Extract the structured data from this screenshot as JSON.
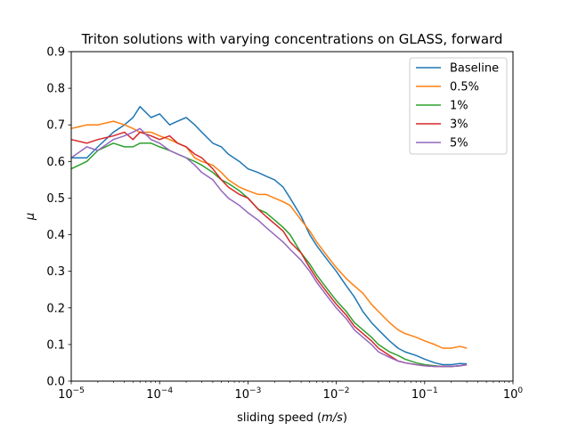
{
  "chart_data": {
    "type": "line",
    "title": "Triton solutions with varying concentrations on GLASS, forward",
    "xlabel_prefix": "sliding speed (",
    "xlabel_unit": "m/s",
    "xlabel_suffix": ")",
    "ylabel": "μ",
    "xscale": "log",
    "xlim": [
      1e-05,
      1
    ],
    "ylim": [
      0,
      0.9
    ],
    "x_ticks": [
      {
        "value": 1e-05,
        "base": "10",
        "exp": "−5"
      },
      {
        "value": 0.0001,
        "base": "10",
        "exp": "−4"
      },
      {
        "value": 0.001,
        "base": "10",
        "exp": "−3"
      },
      {
        "value": 0.01,
        "base": "10",
        "exp": "−2"
      },
      {
        "value": 0.1,
        "base": "10",
        "exp": "−1"
      },
      {
        "value": 1,
        "base": "10",
        "exp": "0"
      }
    ],
    "y_ticks": [
      "0.0",
      "0.1",
      "0.2",
      "0.3",
      "0.4",
      "0.5",
      "0.6",
      "0.7",
      "0.8",
      "0.9"
    ],
    "grid": false,
    "legend_position": "top-right",
    "series": [
      {
        "name": "Baseline",
        "color": "#1f77b4",
        "x": [
          1e-05,
          1.5e-05,
          2e-05,
          3e-05,
          4e-05,
          5e-05,
          6e-05,
          8e-05,
          0.0001,
          0.00013,
          0.00016,
          0.0002,
          0.00025,
          0.0003,
          0.0004,
          0.0005,
          0.0006,
          0.0008,
          0.001,
          0.0013,
          0.0016,
          0.002,
          0.0025,
          0.003,
          0.004,
          0.005,
          0.006,
          0.008,
          0.01,
          0.013,
          0.016,
          0.02,
          0.025,
          0.03,
          0.04,
          0.05,
          0.06,
          0.08,
          0.1,
          0.13,
          0.16,
          0.2,
          0.25,
          0.3
        ],
        "y": [
          0.61,
          0.61,
          0.64,
          0.68,
          0.7,
          0.72,
          0.75,
          0.72,
          0.73,
          0.7,
          0.71,
          0.72,
          0.7,
          0.68,
          0.65,
          0.64,
          0.62,
          0.6,
          0.58,
          0.57,
          0.56,
          0.55,
          0.53,
          0.5,
          0.45,
          0.4,
          0.37,
          0.33,
          0.3,
          0.26,
          0.23,
          0.19,
          0.16,
          0.14,
          0.11,
          0.09,
          0.08,
          0.07,
          0.06,
          0.05,
          0.045,
          0.045,
          0.048,
          0.047
        ]
      },
      {
        "name": "0.5%",
        "color": "#ff7f0e",
        "x": [
          1e-05,
          1.5e-05,
          2e-05,
          3e-05,
          4e-05,
          5e-05,
          6e-05,
          8e-05,
          0.0001,
          0.00013,
          0.00016,
          0.0002,
          0.00025,
          0.0003,
          0.0004,
          0.0005,
          0.0006,
          0.0008,
          0.001,
          0.0013,
          0.0016,
          0.002,
          0.0025,
          0.003,
          0.004,
          0.005,
          0.006,
          0.008,
          0.01,
          0.013,
          0.016,
          0.02,
          0.025,
          0.03,
          0.04,
          0.05,
          0.06,
          0.08,
          0.1,
          0.13,
          0.16,
          0.2,
          0.25,
          0.3
        ],
        "y": [
          0.69,
          0.7,
          0.7,
          0.71,
          0.7,
          0.69,
          0.68,
          0.68,
          0.67,
          0.66,
          0.65,
          0.64,
          0.61,
          0.6,
          0.59,
          0.57,
          0.55,
          0.53,
          0.52,
          0.51,
          0.51,
          0.5,
          0.49,
          0.48,
          0.44,
          0.41,
          0.38,
          0.34,
          0.31,
          0.28,
          0.26,
          0.24,
          0.21,
          0.19,
          0.16,
          0.14,
          0.13,
          0.12,
          0.11,
          0.1,
          0.09,
          0.09,
          0.095,
          0.09
        ]
      },
      {
        "name": "1%",
        "color": "#2ca02c",
        "x": [
          1e-05,
          1.5e-05,
          2e-05,
          3e-05,
          4e-05,
          5e-05,
          6e-05,
          8e-05,
          0.0001,
          0.00013,
          0.00016,
          0.0002,
          0.00025,
          0.0003,
          0.0004,
          0.0005,
          0.0006,
          0.0008,
          0.001,
          0.0013,
          0.0016,
          0.002,
          0.0025,
          0.003,
          0.004,
          0.005,
          0.006,
          0.008,
          0.01,
          0.013,
          0.016,
          0.02,
          0.025,
          0.03,
          0.04,
          0.05,
          0.06,
          0.08,
          0.1,
          0.13,
          0.16,
          0.2,
          0.25,
          0.3
        ],
        "y": [
          0.58,
          0.6,
          0.63,
          0.65,
          0.64,
          0.64,
          0.65,
          0.65,
          0.64,
          0.63,
          0.62,
          0.61,
          0.6,
          0.59,
          0.57,
          0.55,
          0.54,
          0.52,
          0.5,
          0.47,
          0.46,
          0.44,
          0.42,
          0.4,
          0.35,
          0.32,
          0.29,
          0.25,
          0.22,
          0.19,
          0.16,
          0.14,
          0.12,
          0.1,
          0.08,
          0.07,
          0.06,
          0.05,
          0.045,
          0.042,
          0.04,
          0.04,
          0.042,
          0.045
        ]
      },
      {
        "name": "3%",
        "color": "#d62728",
        "x": [
          1e-05,
          1.5e-05,
          2e-05,
          3e-05,
          4e-05,
          5e-05,
          6e-05,
          8e-05,
          0.0001,
          0.00013,
          0.00016,
          0.0002,
          0.00025,
          0.0003,
          0.0004,
          0.0005,
          0.0006,
          0.0008,
          0.001,
          0.0013,
          0.0016,
          0.002,
          0.0025,
          0.003,
          0.004,
          0.005,
          0.006,
          0.008,
          0.01,
          0.013,
          0.016,
          0.02,
          0.025,
          0.03,
          0.04,
          0.05,
          0.06,
          0.08,
          0.1,
          0.13,
          0.16,
          0.2,
          0.25,
          0.3
        ],
        "y": [
          0.66,
          0.65,
          0.66,
          0.67,
          0.68,
          0.66,
          0.68,
          0.67,
          0.66,
          0.67,
          0.65,
          0.64,
          0.62,
          0.61,
          0.58,
          0.55,
          0.53,
          0.51,
          0.5,
          0.47,
          0.45,
          0.43,
          0.41,
          0.38,
          0.35,
          0.31,
          0.28,
          0.24,
          0.21,
          0.18,
          0.15,
          0.13,
          0.11,
          0.09,
          0.07,
          0.055,
          0.05,
          0.045,
          0.042,
          0.04,
          0.04,
          0.04,
          0.042,
          0.045
        ]
      },
      {
        "name": "5%",
        "color": "#9467bd",
        "x": [
          1e-05,
          1.5e-05,
          2e-05,
          3e-05,
          4e-05,
          5e-05,
          6e-05,
          8e-05,
          0.0001,
          0.00013,
          0.00016,
          0.0002,
          0.00025,
          0.0003,
          0.0004,
          0.0005,
          0.0006,
          0.0008,
          0.001,
          0.0013,
          0.0016,
          0.002,
          0.0025,
          0.003,
          0.004,
          0.005,
          0.006,
          0.008,
          0.01,
          0.013,
          0.016,
          0.02,
          0.025,
          0.03,
          0.04,
          0.05,
          0.06,
          0.08,
          0.1,
          0.13,
          0.16,
          0.2,
          0.25,
          0.3
        ],
        "y": [
          0.61,
          0.64,
          0.63,
          0.66,
          0.67,
          0.68,
          0.69,
          0.66,
          0.65,
          0.63,
          0.62,
          0.61,
          0.59,
          0.57,
          0.55,
          0.52,
          0.5,
          0.48,
          0.46,
          0.44,
          0.42,
          0.4,
          0.38,
          0.36,
          0.33,
          0.3,
          0.27,
          0.23,
          0.2,
          0.17,
          0.14,
          0.12,
          0.1,
          0.08,
          0.065,
          0.055,
          0.05,
          0.045,
          0.042,
          0.04,
          0.04,
          0.04,
          0.042,
          0.045
        ]
      }
    ]
  }
}
